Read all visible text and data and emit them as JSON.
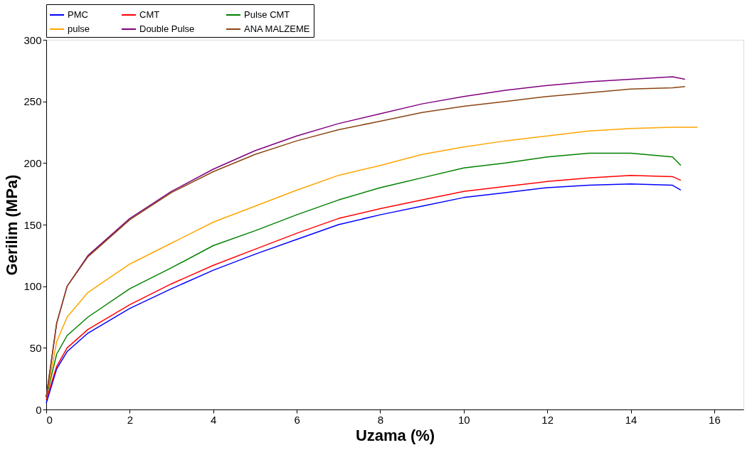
{
  "chart_data": {
    "type": "line",
    "xlabel": "Uzama (%)",
    "ylabel": "Gerilim (MPa)",
    "xlim": [
      0,
      16.7
    ],
    "ylim": [
      0,
      300
    ],
    "xticks": [
      0,
      2,
      4,
      6,
      8,
      10,
      12,
      14,
      16
    ],
    "yticks": [
      0,
      50,
      100,
      150,
      200,
      250,
      300
    ],
    "grid": false,
    "legend": "top",
    "marker": "none",
    "line_style": "solid",
    "series": [
      {
        "name": "PMC",
        "color": "#0000ff",
        "x": [
          0,
          0.25,
          0.5,
          1,
          2,
          3,
          4,
          5,
          6,
          7,
          8,
          9,
          10,
          11,
          12,
          13,
          14,
          15,
          15.2
        ],
        "values": [
          5,
          33,
          47,
          62,
          82,
          98,
          113,
          126,
          138,
          150,
          158,
          165,
          172,
          176,
          180,
          182,
          183,
          182,
          178
        ]
      },
      {
        "name": "CMT",
        "color": "#ff0000",
        "x": [
          0,
          0.25,
          0.5,
          1,
          2,
          3,
          4,
          5,
          6,
          7,
          8,
          9,
          10,
          11,
          12,
          13,
          14,
          15,
          15.2
        ],
        "values": [
          8,
          35,
          50,
          65,
          85,
          102,
          117,
          130,
          143,
          155,
          163,
          170,
          177,
          181,
          185,
          188,
          190,
          189,
          186
        ]
      },
      {
        "name": "Pulse CMT",
        "color": "#008000",
        "x": [
          0,
          0.25,
          0.5,
          1,
          2,
          3,
          4,
          5,
          6,
          7,
          8,
          9,
          10,
          11,
          12,
          13,
          14,
          15,
          15.2
        ],
        "values": [
          10,
          45,
          60,
          75,
          98,
          115,
          133,
          145,
          158,
          170,
          180,
          188,
          196,
          200,
          205,
          208,
          208,
          205,
          198
        ]
      },
      {
        "name": "pulse",
        "color": "#ffa500",
        "x": [
          0,
          0.25,
          0.5,
          1,
          2,
          3,
          4,
          5,
          6,
          7,
          8,
          9,
          10,
          11,
          12,
          13,
          14,
          15,
          15.6
        ],
        "values": [
          10,
          55,
          75,
          95,
          118,
          135,
          152,
          165,
          178,
          190,
          198,
          207,
          213,
          218,
          222,
          226,
          228,
          229,
          229
        ]
      },
      {
        "name": "Double Pulse",
        "color": "#800080",
        "x": [
          0,
          0.25,
          0.5,
          1,
          2,
          3,
          4,
          5,
          6,
          7,
          8,
          9,
          10,
          11,
          12,
          13,
          14,
          15,
          15.3
        ],
        "values": [
          10,
          70,
          100,
          125,
          155,
          177,
          195,
          210,
          222,
          232,
          240,
          248,
          254,
          259,
          263,
          266,
          268,
          270,
          268
        ]
      },
      {
        "name": "ANA MALZEME",
        "color": "#8b4513",
        "x": [
          0,
          0.25,
          0.5,
          1,
          2,
          3,
          4,
          5,
          6,
          7,
          8,
          9,
          10,
          11,
          12,
          13,
          14,
          15,
          15.3
        ],
        "values": [
          10,
          70,
          100,
          124,
          154,
          176,
          193,
          207,
          218,
          227,
          234,
          241,
          246,
          250,
          254,
          257,
          260,
          261,
          262
        ]
      }
    ]
  }
}
